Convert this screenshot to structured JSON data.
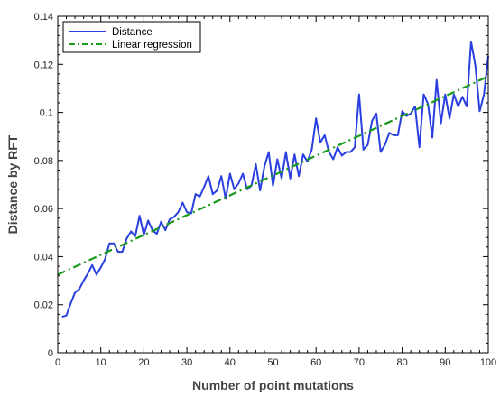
{
  "chart_data": {
    "type": "line",
    "title": "",
    "xlabel": "Number of point mutations",
    "ylabel": "Distance by RFT",
    "xlim": [
      0,
      100
    ],
    "ylim": [
      0,
      0.14
    ],
    "x_ticks": [
      "0",
      "10",
      "20",
      "30",
      "40",
      "50",
      "60",
      "70",
      "80",
      "90",
      "100"
    ],
    "y_ticks": [
      "0",
      "0.02",
      "0.04",
      "0.06",
      "0.08",
      "0.1",
      "0.12",
      "0.14"
    ],
    "grid": false,
    "legend_position": "top-left",
    "series": [
      {
        "name": "Distance",
        "color": "#2a3fe0",
        "style": "solid",
        "x": [
          1,
          2,
          3,
          4,
          5,
          6,
          7,
          8,
          9,
          10,
          11,
          12,
          13,
          14,
          15,
          16,
          17,
          18,
          19,
          20,
          21,
          22,
          23,
          24,
          25,
          26,
          27,
          28,
          29,
          30,
          31,
          32,
          33,
          34,
          35,
          36,
          37,
          38,
          39,
          40,
          41,
          42,
          43,
          44,
          45,
          46,
          47,
          48,
          49,
          50,
          51,
          52,
          53,
          54,
          55,
          56,
          57,
          58,
          59,
          60,
          61,
          62,
          63,
          64,
          65,
          66,
          67,
          68,
          69,
          70,
          71,
          72,
          73,
          74,
          75,
          76,
          77,
          78,
          79,
          80,
          81,
          82,
          83,
          84,
          85,
          86,
          87,
          88,
          89,
          90,
          91,
          92,
          93,
          94,
          95,
          96,
          97,
          98,
          99,
          100
        ],
        "y": [
          0.015,
          0.0155,
          0.0205,
          0.025,
          0.0265,
          0.03,
          0.033,
          0.0365,
          0.0325,
          0.0355,
          0.039,
          0.0455,
          0.0455,
          0.042,
          0.042,
          0.0475,
          0.0505,
          0.0485,
          0.057,
          0.049,
          0.055,
          0.051,
          0.0495,
          0.0545,
          0.051,
          0.0555,
          0.0565,
          0.0585,
          0.0625,
          0.0585,
          0.058,
          0.066,
          0.065,
          0.069,
          0.0735,
          0.066,
          0.0675,
          0.0735,
          0.064,
          0.0745,
          0.068,
          0.0705,
          0.0745,
          0.068,
          0.0695,
          0.0785,
          0.0675,
          0.0775,
          0.0835,
          0.0695,
          0.0805,
          0.0725,
          0.0835,
          0.0725,
          0.0825,
          0.0735,
          0.0825,
          0.0795,
          0.0845,
          0.0975,
          0.0875,
          0.0905,
          0.0835,
          0.0805,
          0.0855,
          0.082,
          0.0835,
          0.0835,
          0.0855,
          0.1075,
          0.0845,
          0.0865,
          0.0965,
          0.0995,
          0.0835,
          0.0865,
          0.0915,
          0.0905,
          0.0905,
          0.1005,
          0.0985,
          0.0995,
          0.1025,
          0.0855,
          0.1075,
          0.1035,
          0.0895,
          0.1135,
          0.0955,
          0.1075,
          0.0975,
          0.1075,
          0.1025,
          0.1065,
          0.1025,
          0.1295,
          0.1195,
          0.1005,
          0.1075,
          0.1235
        ]
      },
      {
        "name": "Linear regression",
        "color": "#1a9a1a",
        "style": "dash-dot",
        "x": [
          0,
          100
        ],
        "y": [
          0.0325,
          0.115
        ]
      }
    ]
  }
}
